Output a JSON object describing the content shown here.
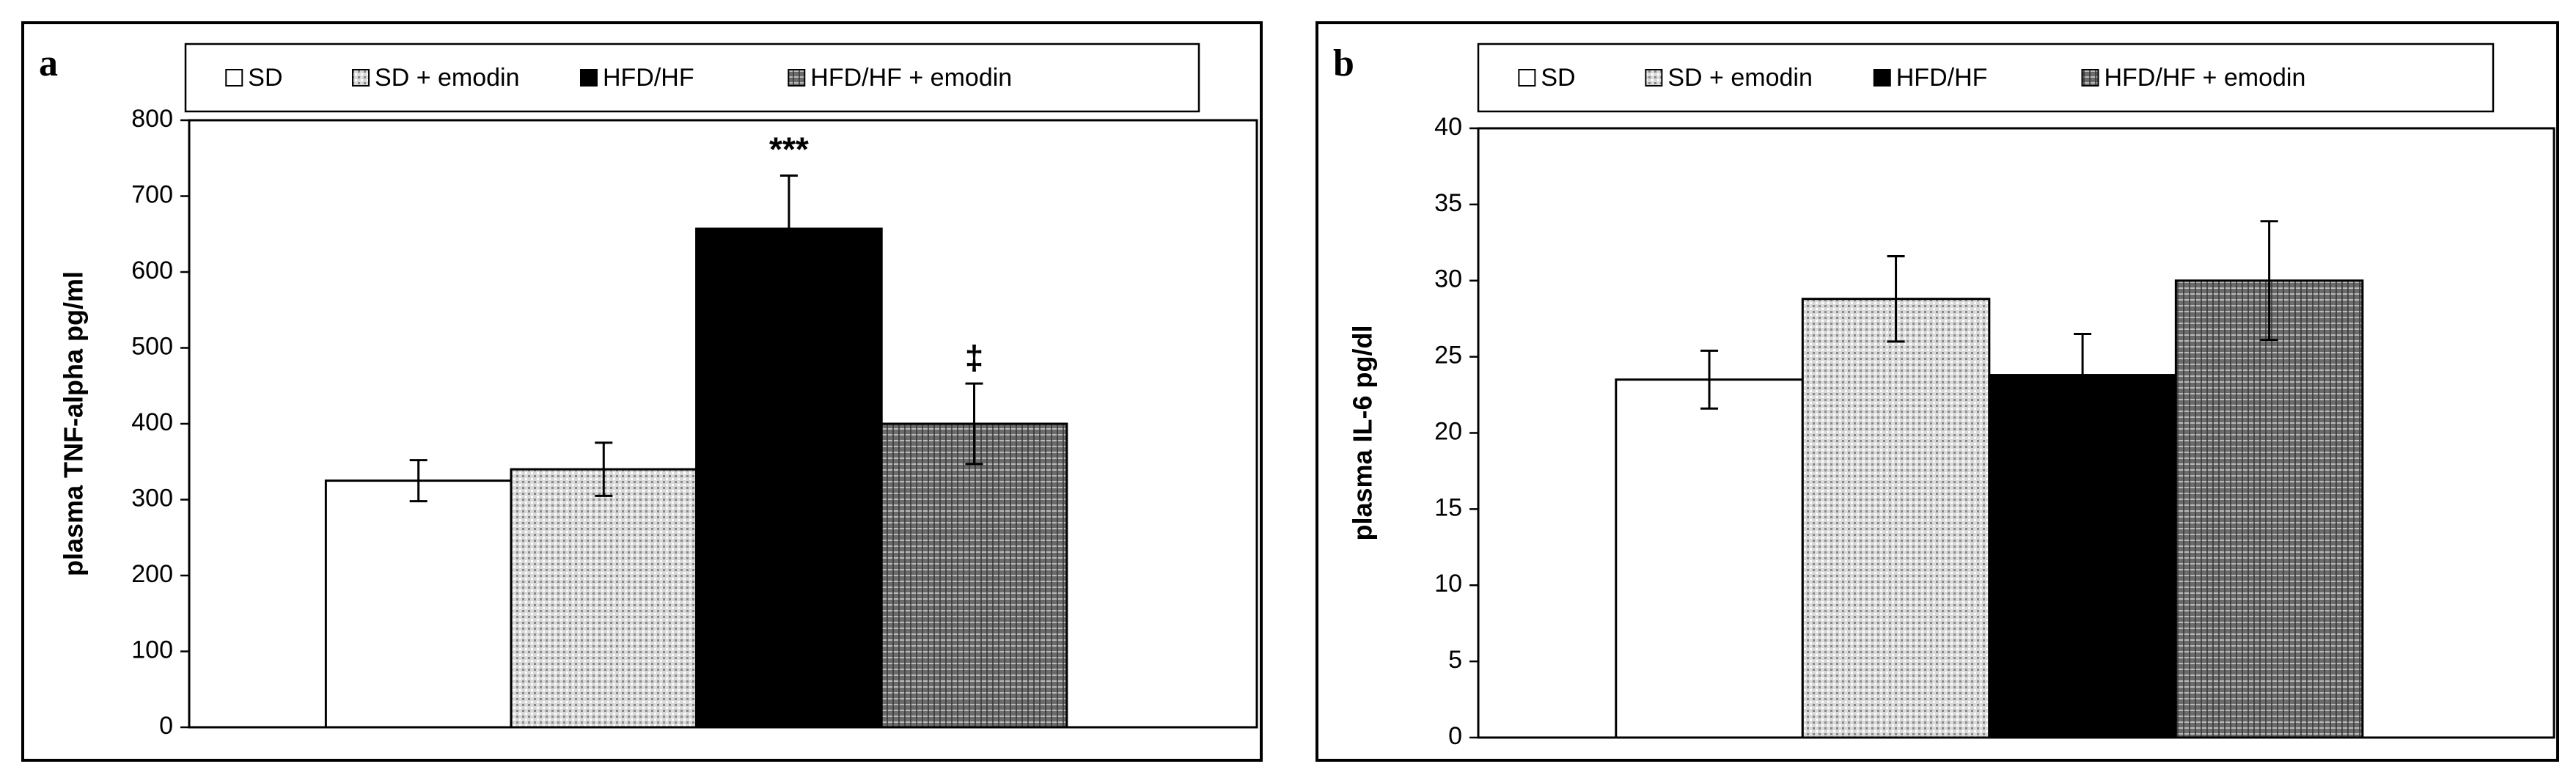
{
  "chart_data": [
    {
      "type": "bar",
      "panel": "a",
      "y_label": "plasma TNF-alpha pg/ml",
      "ylim": [
        0,
        800
      ],
      "yticks": [
        0,
        100,
        200,
        300,
        400,
        500,
        600,
        700,
        800
      ],
      "series": [
        {
          "name": "SD",
          "color": "#ffffff",
          "pattern": "none",
          "values": [
            325
          ],
          "errors": [
            27
          ]
        },
        {
          "name": "SD + emodin",
          "color": "#d9d9d9",
          "pattern": "dots",
          "values": [
            340
          ],
          "errors": [
            35
          ]
        },
        {
          "name": "HFD/HF",
          "color": "#000000",
          "pattern": "none",
          "values": [
            657
          ],
          "errors": [
            70
          ]
        },
        {
          "name": "HFD/HF + emodin",
          "color": "#6b6b6b",
          "pattern": "grid",
          "values": [
            400
          ],
          "errors": [
            53
          ]
        }
      ],
      "annotations": [
        {
          "text": "***",
          "series": 2
        },
        {
          "text": "‡",
          "series": 3
        }
      ]
    },
    {
      "type": "bar",
      "panel": "b",
      "y_label": "plasma IL-6 pg/dl",
      "ylim": [
        0,
        40
      ],
      "yticks": [
        0,
        5,
        10,
        15,
        20,
        25,
        30,
        35,
        40
      ],
      "series": [
        {
          "name": "SD",
          "color": "#ffffff",
          "pattern": "none",
          "values": [
            23.5
          ],
          "errors": [
            1.9
          ]
        },
        {
          "name": "SD + emodin",
          "color": "#d9d9d9",
          "pattern": "dots",
          "values": [
            28.8
          ],
          "errors": [
            2.8
          ]
        },
        {
          "name": "HFD/HF",
          "color": "#000000",
          "pattern": "none",
          "values": [
            23.8
          ],
          "errors": [
            2.7
          ]
        },
        {
          "name": "HFD/HF + emodin",
          "color": "#6b6b6b",
          "pattern": "grid",
          "values": [
            30
          ],
          "errors": [
            3.9
          ]
        }
      ]
    }
  ]
}
